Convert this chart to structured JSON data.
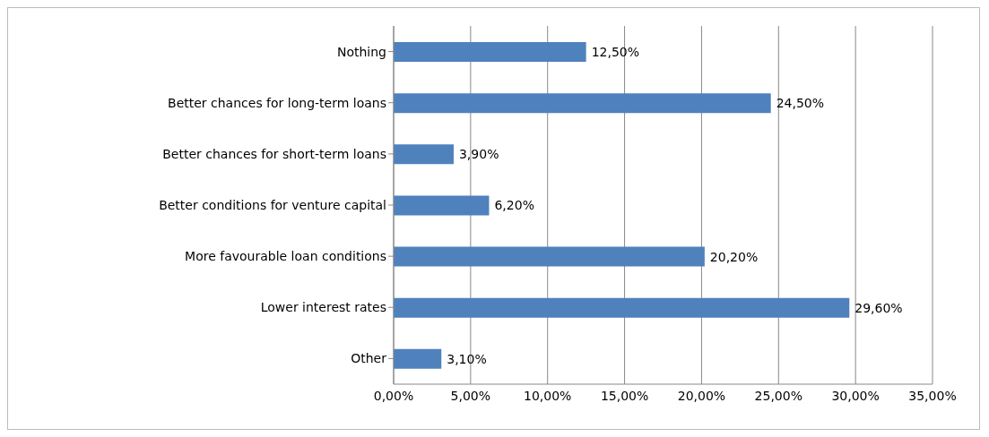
{
  "chart_data": {
    "type": "bar",
    "orientation": "horizontal",
    "categories": [
      "Nothing",
      "Better chances for long-term loans",
      "Better chances for short-term loans",
      "Better conditions for venture capital",
      "More favourable loan conditions",
      "Lower interest rates",
      "Other"
    ],
    "values": [
      12.5,
      24.5,
      3.9,
      6.2,
      20.2,
      29.6,
      3.1
    ],
    "value_labels": [
      "12,50%",
      "24,50%",
      "3,90%",
      "6,20%",
      "20,20%",
      "29,60%",
      "3,10%"
    ],
    "color": "#4f81bd",
    "xlim": [
      0,
      35
    ],
    "xticks": [
      {
        "value": 0,
        "label": "0,00%"
      },
      {
        "value": 5,
        "label": "5,00%"
      },
      {
        "value": 10,
        "label": "10,00%"
      },
      {
        "value": 15,
        "label": "15,00%"
      },
      {
        "value": 20,
        "label": "20,00%"
      },
      {
        "value": 25,
        "label": "25,00%"
      },
      {
        "value": 30,
        "label": "30,00%"
      },
      {
        "value": 35,
        "label": "35,00%"
      }
    ],
    "grid": "x"
  }
}
